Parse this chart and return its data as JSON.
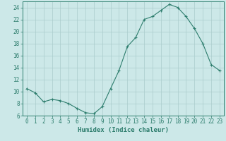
{
  "x": [
    0,
    1,
    2,
    3,
    4,
    5,
    6,
    7,
    8,
    9,
    10,
    11,
    12,
    13,
    14,
    15,
    16,
    17,
    18,
    19,
    20,
    21,
    22,
    23
  ],
  "y": [
    10.5,
    9.8,
    8.3,
    8.7,
    8.5,
    8.0,
    7.2,
    6.5,
    6.3,
    7.5,
    10.5,
    13.5,
    17.5,
    19.0,
    22.0,
    22.5,
    23.5,
    24.5,
    24.0,
    22.5,
    20.5,
    18.0,
    14.5,
    13.5
  ],
  "line_color": "#2d7d6d",
  "marker": "+",
  "bg_color": "#cce8e8",
  "grid_color": "#aacccc",
  "xlabel": "Humidex (Indice chaleur)",
  "ylim": [
    6,
    25
  ],
  "xlim": [
    -0.5,
    23.5
  ],
  "yticks": [
    6,
    8,
    10,
    12,
    14,
    16,
    18,
    20,
    22,
    24
  ],
  "xticks": [
    0,
    1,
    2,
    3,
    4,
    5,
    6,
    7,
    8,
    9,
    10,
    11,
    12,
    13,
    14,
    15,
    16,
    17,
    18,
    19,
    20,
    21,
    22,
    23
  ],
  "axis_color": "#2d7d6d",
  "tick_color": "#2d7d6d",
  "label_fontsize": 6.5,
  "tick_fontsize": 5.5
}
